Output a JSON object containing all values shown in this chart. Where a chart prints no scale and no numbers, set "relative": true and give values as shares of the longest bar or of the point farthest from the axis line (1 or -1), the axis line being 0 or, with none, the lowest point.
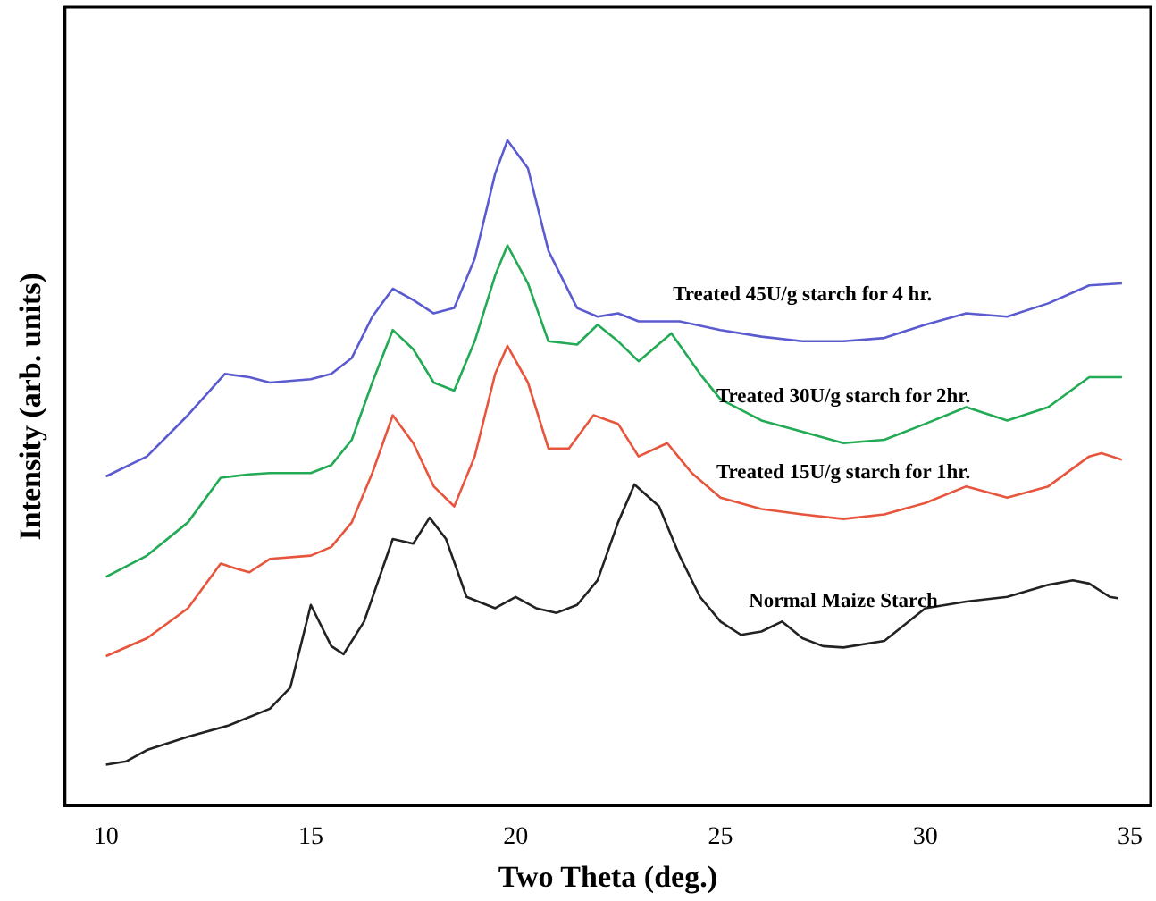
{
  "chart_data": {
    "type": "line",
    "relative": true,
    "xlabel": "Two Theta (deg.)",
    "ylabel": "Intensity (arb. units)",
    "xlim": [
      9,
      35.5
    ],
    "xticks": [
      10,
      15,
      20,
      25,
      30,
      35
    ],
    "grid": false,
    "legend": false,
    "marker": "none",
    "line_style": "solid",
    "tick_labels": "x",
    "series": [
      {
        "name": "Normal Maize Starch",
        "color": "#222222",
        "x": [
          10,
          10.5,
          11,
          12,
          13,
          14,
          14.5,
          15,
          15.5,
          15.8,
          16.3,
          17,
          17.5,
          17.9,
          18.3,
          18.8,
          19.5,
          20,
          20.5,
          21,
          21.5,
          22,
          22.5,
          22.9,
          23.5,
          24,
          24.5,
          25,
          25.5,
          26,
          26.5,
          27,
          27.5,
          28,
          29,
          30,
          31,
          32,
          33,
          33.6,
          34,
          34.5,
          34.7
        ],
        "values": [
          0.062,
          0.067,
          0.084,
          0.104,
          0.121,
          0.146,
          0.178,
          0.302,
          0.24,
          0.228,
          0.277,
          0.401,
          0.394,
          0.433,
          0.401,
          0.314,
          0.297,
          0.314,
          0.297,
          0.29,
          0.302,
          0.339,
          0.426,
          0.483,
          0.45,
          0.376,
          0.314,
          0.277,
          0.257,
          0.262,
          0.277,
          0.252,
          0.24,
          0.238,
          0.248,
          0.297,
          0.307,
          0.314,
          0.332,
          0.339,
          0.334,
          0.314,
          0.312
        ]
      },
      {
        "name": "Treated 15U/g starch for 1hr.",
        "color": "#e8553d",
        "x": [
          10,
          11,
          12,
          12.8,
          13.2,
          13.5,
          14,
          15,
          15.5,
          16,
          16.5,
          17,
          17.5,
          18,
          18.5,
          19,
          19.5,
          19.8,
          20.3,
          20.8,
          21.3,
          21.9,
          22.5,
          23,
          23.7,
          24.3,
          25,
          26,
          27,
          28,
          29,
          30,
          31,
          32,
          33,
          34,
          34.3,
          34.8
        ],
        "values": [
          0.225,
          0.252,
          0.297,
          0.364,
          0.356,
          0.351,
          0.371,
          0.376,
          0.389,
          0.426,
          0.5,
          0.587,
          0.545,
          0.48,
          0.45,
          0.525,
          0.649,
          0.691,
          0.636,
          0.537,
          0.537,
          0.587,
          0.574,
          0.525,
          0.545,
          0.5,
          0.463,
          0.446,
          0.438,
          0.431,
          0.438,
          0.455,
          0.48,
          0.463,
          0.48,
          0.525,
          0.53,
          0.52
        ]
      },
      {
        "name": "Treated 30U/g starch for 2hr.",
        "color": "#22aa55",
        "x": [
          10,
          11,
          12,
          12.8,
          13.5,
          14,
          15,
          15.5,
          16,
          16.5,
          17,
          17.5,
          18,
          18.5,
          19,
          19.5,
          19.8,
          20.3,
          20.8,
          21.5,
          22,
          22.5,
          23,
          23.8,
          24.5,
          25,
          26,
          27,
          28,
          29,
          30,
          31,
          32,
          33,
          34,
          34.8
        ],
        "values": [
          0.344,
          0.376,
          0.426,
          0.493,
          0.498,
          0.5,
          0.5,
          0.512,
          0.55,
          0.636,
          0.715,
          0.686,
          0.636,
          0.624,
          0.698,
          0.797,
          0.842,
          0.785,
          0.698,
          0.693,
          0.723,
          0.698,
          0.668,
          0.71,
          0.649,
          0.611,
          0.579,
          0.562,
          0.545,
          0.55,
          0.574,
          0.599,
          0.579,
          0.599,
          0.644,
          0.644
        ]
      },
      {
        "name": "Treated 45U/g starch for 4 hr.",
        "color": "#5b5bd0",
        "x": [
          10,
          11,
          12,
          12.9,
          13.5,
          14,
          15,
          15.5,
          16,
          16.5,
          17,
          17.5,
          18,
          18.5,
          19,
          19.5,
          19.8,
          20.3,
          20.8,
          21.5,
          22,
          22.5,
          23,
          24,
          25,
          26,
          27,
          28,
          29,
          30,
          31,
          32,
          33,
          34,
          34.8
        ],
        "values": [
          0.495,
          0.525,
          0.587,
          0.649,
          0.644,
          0.636,
          0.641,
          0.649,
          0.673,
          0.735,
          0.777,
          0.76,
          0.74,
          0.748,
          0.822,
          0.95,
          1,
          0.958,
          0.834,
          0.748,
          0.735,
          0.74,
          0.728,
          0.728,
          0.715,
          0.705,
          0.698,
          0.698,
          0.703,
          0.723,
          0.74,
          0.735,
          0.755,
          0.782,
          0.785
        ]
      }
    ]
  }
}
